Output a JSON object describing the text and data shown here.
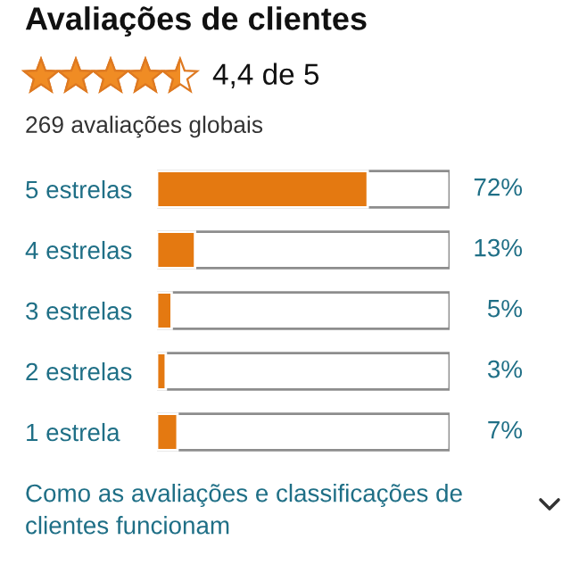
{
  "chart_data": {
    "type": "bar",
    "orientation": "horizontal",
    "title": "Avaliações de clientes",
    "subtitle": "269 avaliações globais",
    "categories": [
      "5 estrelas",
      "4 estrelas",
      "3 estrelas",
      "2 estrelas",
      "1 estrela"
    ],
    "values": [
      72,
      13,
      5,
      3,
      7
    ],
    "color": "#e47911",
    "value_labels": [
      "72%",
      "13%",
      "5%",
      "3%",
      "7%"
    ],
    "xlim": [
      0,
      100
    ],
    "tick_labels": "y",
    "annotations": [
      "4,4 de 5",
      "Como as avaliações e classificações de clientes funcionam"
    ]
  }
}
